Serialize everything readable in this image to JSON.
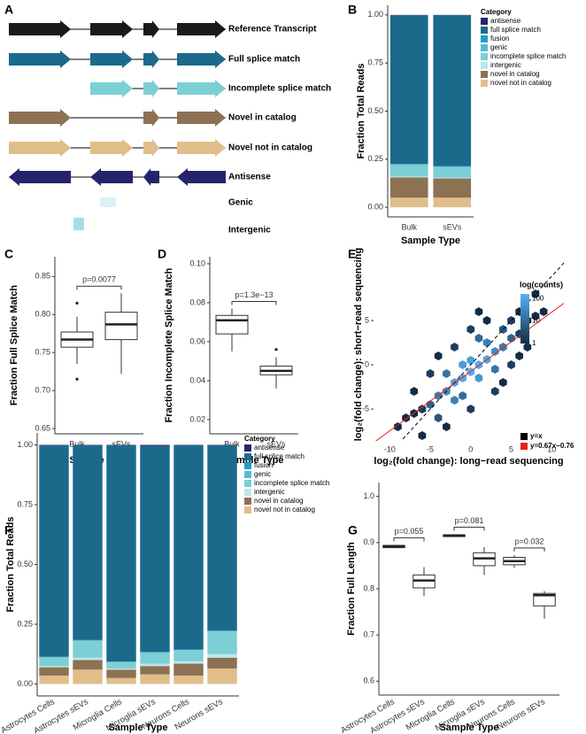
{
  "diagram": {
    "panel": "A",
    "rows": [
      {
        "label": "Reference Transcript",
        "color": "#1a1a1a"
      },
      {
        "label": "Full splice match",
        "color": "#1b6a8c"
      },
      {
        "label": "Incomplete splice match",
        "color": "#7ccfd4"
      },
      {
        "label": "Novel in catalog",
        "color": "#8c7253"
      },
      {
        "label": "Novel not in catalog",
        "color": "#e1bd8a"
      },
      {
        "label": "Antisense",
        "color": "#25246a"
      },
      {
        "label": "Genic",
        "color": "#dcf0f7"
      },
      {
        "label": "Intergenic",
        "color": "#a8dde4"
      }
    ]
  },
  "chart_data": [
    {
      "type": "stacked_bar",
      "panel": "B",
      "ylabel": "Fraction Total Reads",
      "xlabel": "Sample Type",
      "legend_title": "Category",
      "categories": [
        "Bulk",
        "sEVs"
      ],
      "series": [
        {
          "name": "antisense",
          "color": "#25246a",
          "values": [
            0.002,
            0.002
          ]
        },
        {
          "name": "full splice match",
          "color": "#1b6a8c",
          "values": [
            0.773,
            0.784
          ]
        },
        {
          "name": "fusion",
          "color": "#1d9cc8",
          "values": [
            0.002,
            0.002
          ]
        },
        {
          "name": "genic",
          "color": "#58b9d4",
          "values": [
            0.003,
            0.002
          ]
        },
        {
          "name": "incomplete splice match",
          "color": "#7ccfd4",
          "values": [
            0.06,
            0.055
          ]
        },
        {
          "name": "intergenic",
          "color": "#bde5ea",
          "values": [
            0.005,
            0.005
          ]
        },
        {
          "name": "novel in catalog",
          "color": "#8c7253",
          "values": [
            0.105,
            0.1
          ]
        },
        {
          "name": "novel not in catalog",
          "color": "#e1bd8a",
          "values": [
            0.05,
            0.05
          ]
        }
      ],
      "ylim": [
        -0.05,
        1.05
      ],
      "yticks": [
        {
          "value": 0,
          "label": "0.00"
        },
        {
          "value": 0.25,
          "label": "0.25"
        },
        {
          "value": 0.5,
          "label": "0.50"
        },
        {
          "value": 0.75,
          "label": "0.75"
        },
        {
          "value": 1,
          "label": "1.00"
        }
      ]
    },
    {
      "type": "box",
      "panel": "C",
      "ylabel": "Fraction Full Splice Match",
      "xlabel": "Sample Type",
      "categories": [
        "Bulk",
        "sEVs"
      ],
      "boxes": [
        {
          "whislo": 0.735,
          "q1": 0.757,
          "median": 0.767,
          "q3": 0.777,
          "whishi": 0.797,
          "outliers": [
            0.815,
            0.715
          ]
        },
        {
          "whislo": 0.722,
          "q1": 0.767,
          "median": 0.787,
          "q3": 0.803,
          "whishi": 0.828,
          "outliers": []
        }
      ],
      "annotations": [
        {
          "text": "p=0.0077",
          "pair": [
            0,
            1
          ]
        }
      ],
      "ylim": [
        0.643,
        0.876
      ],
      "yticks": [
        0.65,
        {
          "value": 0.7,
          "label": "0.70"
        },
        0.75,
        {
          "value": 0.8,
          "label": "0.80"
        },
        0.85
      ]
    },
    {
      "type": "box",
      "panel": "D",
      "ylabel": "Fraction Incomplete Splice Match",
      "xlabel": "Sample Type",
      "categories": [
        "Bulk",
        "sEVs"
      ],
      "boxes": [
        {
          "whislo": 0.055,
          "q1": 0.064,
          "median": 0.071,
          "q3": 0.0735,
          "whishi": 0.077,
          "outliers": []
        },
        {
          "whislo": 0.036,
          "q1": 0.043,
          "median": 0.045,
          "q3": 0.0475,
          "whishi": 0.052,
          "outliers": [
            0.056
          ]
        }
      ],
      "annotations": [
        {
          "text": "p=1.3e−13",
          "pair": [
            0,
            1
          ]
        }
      ],
      "ylim": [
        0.0127,
        0.1036
      ],
      "yticks": [
        0.02,
        0.04,
        0.06,
        0.08,
        {
          "value": 0.1,
          "label": "0.10"
        }
      ]
    },
    {
      "type": "hexbin",
      "panel": "E",
      "ylabel": "log₂(fold change): short−read sequencing",
      "xlabel": "log₂(fold change): long−read sequencing",
      "x": [
        -1,
        0,
        1,
        -2,
        2,
        0,
        -1,
        1,
        3,
        -3,
        4,
        -4,
        2,
        -2,
        3,
        -3,
        5,
        -5,
        1,
        -1,
        4,
        -4,
        6,
        7,
        8,
        6,
        5,
        2,
        -6,
        -7,
        -8,
        -6,
        -3,
        5,
        6,
        -5,
        -7,
        7,
        0,
        0,
        -2,
        3,
        9,
        -9,
        8,
        4,
        -4,
        1
      ],
      "y": [
        -1.5,
        -0.8,
        0,
        -2,
        0.6,
        0.5,
        0,
        -1.5,
        1.5,
        -3,
        2,
        -3.5,
        2.5,
        -4,
        -0.5,
        -1,
        3,
        -4.5,
        3,
        -3.5,
        4,
        -6,
        3.5,
        5,
        5.5,
        6,
        5,
        5,
        -5,
        -5.5,
        -6,
        -8,
        -7,
        0,
        1,
        -1,
        -3,
        2,
        4,
        -5,
        2,
        -3,
        6,
        -7,
        8,
        -2,
        1,
        6
      ],
      "counts": [
        120,
        150,
        140,
        90,
        100,
        80,
        70,
        60,
        40,
        40,
        20,
        20,
        25,
        25,
        15,
        15,
        8,
        8,
        10,
        12,
        5,
        5,
        2,
        1,
        1,
        1,
        2,
        1,
        2,
        1,
        1,
        1,
        1,
        2,
        1,
        2,
        1,
        1,
        2,
        2,
        2,
        2,
        1,
        1,
        1,
        1,
        1,
        1
      ],
      "colorbar": {
        "title": "log(counts)",
        "ticks": [
          1,
          10,
          100
        ],
        "lim": [
          1,
          160
        ],
        "low": "#132b43",
        "high": "#56b1f7"
      },
      "lines": [
        {
          "name": "y=x",
          "slope": 1,
          "intercept": 0,
          "color": "#000000",
          "dash": true
        },
        {
          "name": "y=0.67x−0.76",
          "slope": 0.67,
          "intercept": -0.76,
          "color": "#e8211b",
          "dash": false
        }
      ],
      "xlim": [
        -12,
        11.5
      ],
      "xticks": [
        -10,
        -5,
        0,
        5,
        10
      ],
      "ylim": [
        -8.6,
        13.2
      ],
      "yticks": [
        -5,
        0,
        5
      ]
    },
    {
      "type": "stacked_bar",
      "panel": "F",
      "ylabel": "Fraction Total Reads",
      "xlabel": "Sample Type",
      "legend_title": "Category",
      "categories": [
        "Astrocytes Cells",
        "Astrocytes sEVs",
        "Microglia Cells",
        "Microglia sEVs",
        "Neurons Cells",
        "Neurons sEVs"
      ],
      "series": [
        {
          "name": "antisense",
          "color": "#25246a",
          "values": [
            0.002,
            0.002,
            0.002,
            0.005,
            0.002,
            0.002
          ]
        },
        {
          "name": "full splice match",
          "color": "#1b6a8c",
          "values": [
            0.884,
            0.814,
            0.904,
            0.861,
            0.854,
            0.774
          ]
        },
        {
          "name": "fusion",
          "color": "#1d9cc8",
          "values": [
            0.002,
            0.002,
            0.002,
            0.002,
            0.002,
            0.002
          ]
        },
        {
          "name": "genic",
          "color": "#58b9d4",
          "values": [
            0.002,
            0.002,
            0.002,
            0.002,
            0.002,
            0.002
          ]
        },
        {
          "name": "incomplete splice match",
          "color": "#7ccfd4",
          "values": [
            0.035,
            0.07,
            0.025,
            0.045,
            0.045,
            0.095
          ]
        },
        {
          "name": "intergenic",
          "color": "#bde5ea",
          "values": [
            0.005,
            0.01,
            0.005,
            0.01,
            0.01,
            0.015
          ]
        },
        {
          "name": "novel in catalog",
          "color": "#8c7253",
          "values": [
            0.035,
            0.04,
            0.035,
            0.035,
            0.05,
            0.045
          ]
        },
        {
          "name": "novel not in catalog",
          "color": "#e1bd8a",
          "values": [
            0.035,
            0.06,
            0.025,
            0.04,
            0.035,
            0.065
          ]
        }
      ],
      "ylim": [
        -0.05,
        1.05
      ],
      "yticks": [
        {
          "value": 0,
          "label": "0.00"
        },
        {
          "value": 0.25,
          "label": "0.25"
        },
        {
          "value": 0.5,
          "label": "0.50"
        },
        {
          "value": 0.75,
          "label": "0.75"
        },
        {
          "value": 1,
          "label": "1.00"
        }
      ]
    },
    {
      "type": "box",
      "panel": "G",
      "ylabel": "Fraction Full Length",
      "xlabel": "Sample Type",
      "categories": [
        "Astrocytes Cells",
        "Astrocytes sEVs",
        "Microglia Cells",
        "Microglia sEVs",
        "Neurons Cells",
        "Neurons sEVs"
      ],
      "boxes": [
        {
          "whislo": 0.888,
          "q1": 0.889,
          "median": 0.892,
          "q3": 0.894,
          "whishi": 0.895,
          "outliers": []
        },
        {
          "whislo": 0.785,
          "q1": 0.802,
          "median": 0.818,
          "q3": 0.83,
          "whishi": 0.847,
          "outliers": []
        },
        {
          "whislo": 0.912,
          "q1": 0.913,
          "median": 0.915,
          "q3": 0.917,
          "whishi": 0.918,
          "outliers": []
        },
        {
          "whislo": 0.83,
          "q1": 0.85,
          "median": 0.866,
          "q3": 0.878,
          "whishi": 0.89,
          "outliers": []
        },
        {
          "whislo": 0.845,
          "q1": 0.852,
          "median": 0.86,
          "q3": 0.868,
          "whishi": 0.873,
          "outliers": []
        },
        {
          "whislo": 0.735,
          "q1": 0.763,
          "median": 0.786,
          "q3": 0.79,
          "whishi": 0.795,
          "outliers": []
        }
      ],
      "annotations": [
        {
          "text": "p=0.055",
          "pair": [
            0,
            1
          ]
        },
        {
          "text": "p=0.081",
          "pair": [
            2,
            3
          ]
        },
        {
          "text": "p=0.032",
          "pair": [
            4,
            5
          ]
        }
      ],
      "ylim": [
        0.57,
        1.03
      ],
      "yticks": [
        0.6,
        0.7,
        0.8,
        0.9,
        {
          "value": 1,
          "label": "1.0"
        }
      ]
    }
  ]
}
